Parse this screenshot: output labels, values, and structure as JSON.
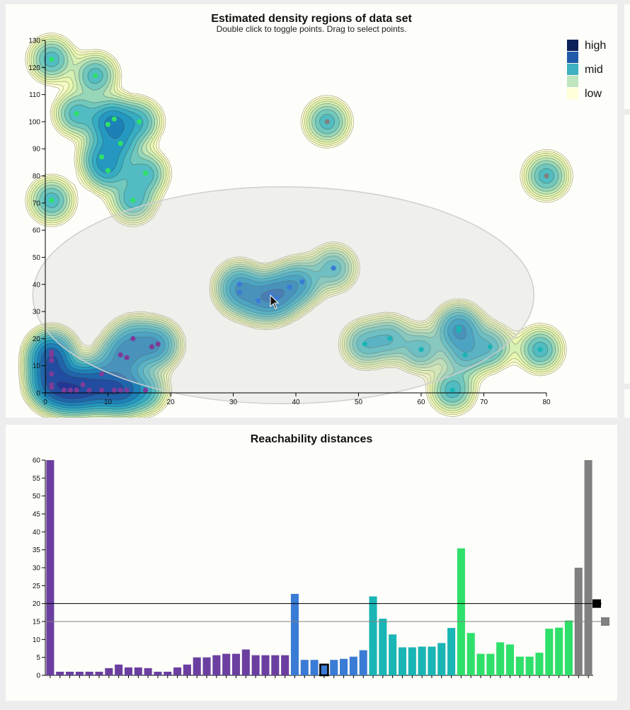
{
  "chart_data": [
    {
      "type": "scatter",
      "title": "Estimated density regions of data set",
      "subtitle": "Double click to toggle points. Drag to select points.",
      "xlim": [
        0,
        80
      ],
      "ylim": [
        0,
        130
      ],
      "x_ticks": [
        0,
        10,
        20,
        30,
        40,
        50,
        60,
        70,
        80
      ],
      "y_ticks": [
        0,
        10,
        20,
        30,
        40,
        50,
        60,
        70,
        80,
        90,
        100,
        110,
        120,
        130
      ],
      "legend": {
        "placement": "top-right",
        "entries": [
          {
            "label": "high",
            "color": "#0d2159"
          },
          {
            "label": "",
            "color": "#1f5ba8"
          },
          {
            "label": "mid",
            "color": "#3fb1c1"
          },
          {
            "label": "",
            "color": "#bfe5bf"
          },
          {
            "label": "low",
            "color": "#ffffd9"
          }
        ]
      },
      "selection_ellipse": {
        "cx": 38,
        "cy": 36,
        "rx": 40,
        "ry": 40
      },
      "series": [
        {
          "color": "#7d3c98",
          "points": [
            [
              1,
              15
            ],
            [
              1,
              14
            ],
            [
              1,
              12
            ],
            [
              1,
              7
            ],
            [
              1,
              3
            ],
            [
              1,
              2
            ],
            [
              3,
              1
            ],
            [
              4,
              1
            ],
            [
              5,
              1
            ],
            [
              6,
              3
            ],
            [
              7,
              1
            ],
            [
              9,
              7
            ],
            [
              9,
              1
            ],
            [
              11,
              1
            ],
            [
              12,
              1
            ],
            [
              13,
              1
            ],
            [
              12,
              14
            ],
            [
              13,
              13
            ],
            [
              14,
              20
            ],
            [
              16,
              1
            ],
            [
              17,
              17
            ],
            [
              18,
              18
            ]
          ]
        },
        {
          "color": "#3a7bd5",
          "points": [
            [
              31,
              40
            ],
            [
              31,
              37
            ],
            [
              34,
              34
            ],
            [
              36,
              36
            ],
            [
              37,
              35
            ],
            [
              39,
              39
            ],
            [
              41,
              41
            ],
            [
              46,
              46
            ]
          ]
        },
        {
          "color": "#1ab5b5",
          "points": [
            [
              51,
              18
            ],
            [
              55,
              20
            ],
            [
              60,
              16
            ],
            [
              65,
              1
            ],
            [
              66,
              24
            ],
            [
              66,
              23
            ],
            [
              67,
              14
            ],
            [
              71,
              17
            ],
            [
              79,
              16
            ]
          ]
        },
        {
          "color": "#2ee06a",
          "points": [
            [
              1,
              123
            ],
            [
              1,
              71
            ],
            [
              5,
              103
            ],
            [
              8,
              117
            ],
            [
              9,
              87
            ],
            [
              10,
              82
            ],
            [
              10,
              99
            ],
            [
              11,
              101
            ],
            [
              12,
              92
            ],
            [
              14,
              71
            ],
            [
              15,
              100
            ],
            [
              16,
              81
            ]
          ]
        },
        {
          "color": "#808080",
          "points": [
            [
              45,
              100
            ],
            [
              80,
              80
            ]
          ]
        }
      ]
    },
    {
      "type": "bar",
      "title": "Reachability distances",
      "ylim": [
        0,
        60
      ],
      "y_ticks": [
        0,
        5,
        10,
        15,
        20,
        25,
        30,
        35,
        40,
        45,
        50,
        55,
        60
      ],
      "values": [
        60,
        1,
        1,
        1,
        1,
        1,
        2,
        3,
        2.2,
        2.2,
        2,
        1,
        1,
        2.2,
        3,
        5,
        5,
        5.6,
        6,
        6,
        7.2,
        5.6,
        5.6,
        5.6,
        5.6,
        22.7,
        4.3,
        4.3,
        3,
        4.3,
        4.6,
        5.2,
        7,
        22,
        15.8,
        11.4,
        7.8,
        7.8,
        8,
        8,
        9,
        13.2,
        35.4,
        11.8,
        6,
        6,
        9.2,
        8.6,
        5.2,
        5.2,
        6.3,
        13,
        13.3,
        15.3,
        30,
        60
      ],
      "bar_colors": [
        "#6b3fa0",
        "#6b3fa0",
        "#6b3fa0",
        "#6b3fa0",
        "#6b3fa0",
        "#6b3fa0",
        "#6b3fa0",
        "#6b3fa0",
        "#6b3fa0",
        "#6b3fa0",
        "#6b3fa0",
        "#6b3fa0",
        "#6b3fa0",
        "#6b3fa0",
        "#6b3fa0",
        "#6b3fa0",
        "#6b3fa0",
        "#6b3fa0",
        "#6b3fa0",
        "#6b3fa0",
        "#6b3fa0",
        "#6b3fa0",
        "#6b3fa0",
        "#6b3fa0",
        "#6b3fa0",
        "#3a7bd5",
        "#3a7bd5",
        "#3a7bd5",
        "#3a7bd5",
        "#3a7bd5",
        "#3a7bd5",
        "#3a7bd5",
        "#3a7bd5",
        "#1ab5b5",
        "#1ab5b5",
        "#1ab5b5",
        "#1ab5b5",
        "#1ab5b5",
        "#1ab5b5",
        "#1ab5b5",
        "#1ab5b5",
        "#1ab5b5",
        "#2ee06a",
        "#2ee06a",
        "#2ee06a",
        "#2ee06a",
        "#2ee06a",
        "#2ee06a",
        "#2ee06a",
        "#2ee06a",
        "#2ee06a",
        "#2ee06a",
        "#2ee06a",
        "#2ee06a",
        "#808080",
        "#808080"
      ],
      "highlighted_bar_index": 28,
      "threshold_lines": [
        {
          "value": 20,
          "color": "#000000"
        },
        {
          "value": 15,
          "color": "#808080"
        }
      ]
    }
  ]
}
